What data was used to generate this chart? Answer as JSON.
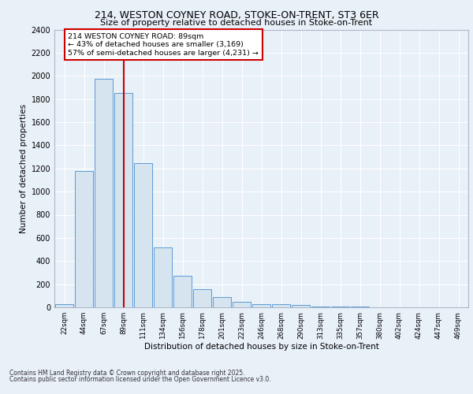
{
  "title1": "214, WESTON COYNEY ROAD, STOKE-ON-TRENT, ST3 6ER",
  "title2": "Size of property relative to detached houses in Stoke-on-Trent",
  "xlabel": "Distribution of detached houses by size in Stoke-on-Trent",
  "ylabel": "Number of detached properties",
  "categories": [
    "22sqm",
    "44sqm",
    "67sqm",
    "89sqm",
    "111sqm",
    "134sqm",
    "156sqm",
    "178sqm",
    "201sqm",
    "223sqm",
    "246sqm",
    "268sqm",
    "290sqm",
    "313sqm",
    "335sqm",
    "357sqm",
    "380sqm",
    "402sqm",
    "424sqm",
    "447sqm",
    "469sqm"
  ],
  "values": [
    25,
    1175,
    1975,
    1855,
    1245,
    515,
    275,
    155,
    88,
    48,
    28,
    28,
    18,
    8,
    5,
    4,
    3,
    2,
    1,
    1,
    1
  ],
  "bar_color": "#d6e4f0",
  "bar_edge_color": "#5b9bd5",
  "vline_x_index": 3,
  "vline_color": "#cc0000",
  "annotation_title": "214 WESTON COYNEY ROAD: 89sqm",
  "annotation_line1": "← 43% of detached houses are smaller (3,169)",
  "annotation_line2": "57% of semi-detached houses are larger (4,231) →",
  "annotation_box_color": "#cc0000",
  "footer1": "Contains HM Land Registry data © Crown copyright and database right 2025.",
  "footer2": "Contains public sector information licensed under the Open Government Licence v3.0.",
  "bg_color": "#e8f0f8",
  "fig_bg_color": "#e8f0f8",
  "ylim": [
    0,
    2400
  ],
  "yticks": [
    0,
    200,
    400,
    600,
    800,
    1000,
    1200,
    1400,
    1600,
    1800,
    2000,
    2200,
    2400
  ]
}
